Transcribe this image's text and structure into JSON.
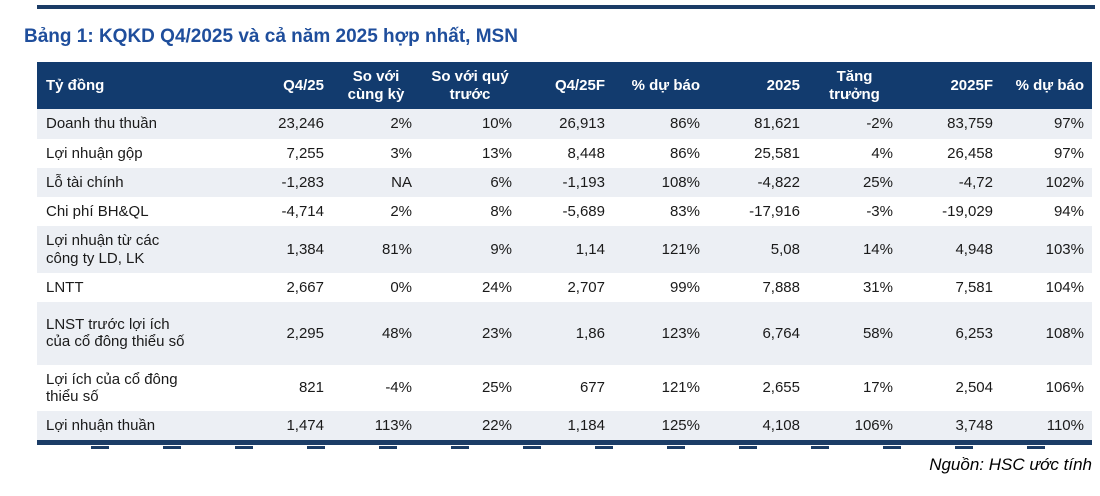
{
  "page": {
    "title": "Bảng 1: KQKD Q4/2025 và cả năm 2025 hợp nhất, MSN"
  },
  "colors": {
    "header_navy": "#123B6E",
    "rule_navy": "#1B3C66",
    "title_blue": "#1F4E9C",
    "row_alt": "#ECEFF4"
  },
  "table": {
    "headers": [
      "Tỷ đồng",
      "Q4/25",
      "So với cùng kỳ",
      "So với quý trước",
      "Q4/25F",
      "% dự báo",
      "2025",
      "Tăng trưởng",
      "2025F",
      "% dự báo"
    ],
    "rows": [
      {
        "label": "Doanh thu thuần",
        "values": [
          "23,246",
          "2%",
          "10%",
          "26,913",
          "86%",
          "81,621",
          "-2%",
          "83,759",
          "97%"
        ]
      },
      {
        "label": "Lợi nhuận gộp",
        "values": [
          "7,255",
          "3%",
          "13%",
          "8,448",
          "86%",
          "25,581",
          "4%",
          "26,458",
          "97%"
        ]
      },
      {
        "label": "Lỗ tài chính",
        "values": [
          "-1,283",
          "NA",
          "6%",
          "-1,193",
          "108%",
          "-4,822",
          "25%",
          "-4,72",
          "102%"
        ]
      },
      {
        "label": "Chi phí BH&QL",
        "values": [
          "-4,714",
          "2%",
          "8%",
          "-5,689",
          "83%",
          "-17,916",
          "-3%",
          "-19,029",
          "94%"
        ]
      },
      {
        "label": "Lợi nhuận từ các\ncông ty LD, LK",
        "values": [
          "1,384",
          "81%",
          "9%",
          "1,14",
          "121%",
          "5,08",
          "14%",
          "4,948",
          "103%"
        ]
      },
      {
        "label": "LNTT",
        "values": [
          "2,667",
          "0%",
          "24%",
          "2,707",
          "99%",
          "7,888",
          "31%",
          "7,581",
          "104%"
        ]
      },
      {
        "label": "LNST trước lợi ích\ncủa cổ đông thiểu số",
        "values": [
          "2,295",
          "48%",
          "23%",
          "1,86",
          "123%",
          "6,764",
          "58%",
          "6,253",
          "108%"
        ]
      },
      {
        "label": "Lợi ích của cổ đông\nthiểu số",
        "values": [
          "821",
          "-4%",
          "25%",
          "677",
          "121%",
          "2,655",
          "17%",
          "2,504",
          "106%"
        ]
      },
      {
        "label": "Lợi nhuận thuần",
        "values": [
          "1,474",
          "113%",
          "22%",
          "1,184",
          "125%",
          "4,108",
          "106%",
          "3,748",
          "110%"
        ]
      }
    ]
  },
  "footer": {
    "source": "Nguồn: HSC ước tính"
  }
}
